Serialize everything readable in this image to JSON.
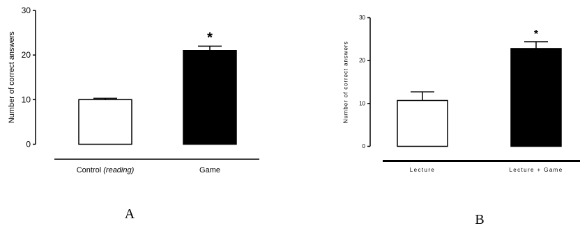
{
  "chart_data": [
    {
      "type": "bar",
      "panel_label": "A",
      "categories": [
        "Control ",
        "Game"
      ],
      "category_suffix": [
        "(reading)",
        ""
      ],
      "values": [
        10,
        21
      ],
      "errors": [
        0.3,
        1.0
      ],
      "significance": [
        "",
        "*"
      ],
      "bar_colors": [
        "#ffffff",
        "#000000"
      ],
      "ylabel": "Number of correct answers",
      "ylim": [
        0,
        30
      ],
      "yticks": [
        0,
        10,
        20,
        30
      ],
      "grid": false
    },
    {
      "type": "bar",
      "panel_label": "B",
      "categories": [
        "Lecture",
        "Lecture + Game"
      ],
      "category_suffix": [
        "",
        ""
      ],
      "values": [
        10.7,
        22.8
      ],
      "errors": [
        2.0,
        1.6
      ],
      "significance": [
        "",
        "*"
      ],
      "bar_colors": [
        "#ffffff",
        "#000000"
      ],
      "ylabel": "Number of correct answers",
      "ylim": [
        0,
        30
      ],
      "yticks": [
        0,
        10,
        20,
        30
      ],
      "grid": false
    }
  ]
}
